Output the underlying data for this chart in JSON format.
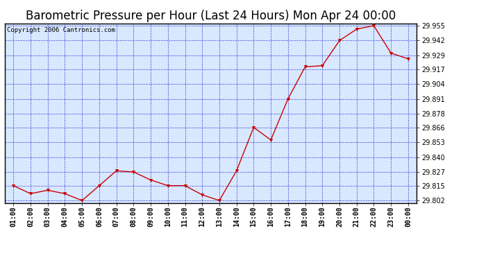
{
  "title": "Barometric Pressure per Hour (Last 24 Hours) Mon Apr 24 00:00",
  "copyright": "Copyright 2006 Cantronics.com",
  "x_labels": [
    "01:00",
    "02:00",
    "03:00",
    "04:00",
    "05:00",
    "06:00",
    "07:00",
    "08:00",
    "09:00",
    "10:00",
    "11:00",
    "12:00",
    "13:00",
    "14:00",
    "15:00",
    "16:00",
    "17:00",
    "18:00",
    "19:00",
    "20:00",
    "21:00",
    "22:00",
    "23:00",
    "00:00"
  ],
  "y_values": [
    29.815,
    29.808,
    29.811,
    29.808,
    29.802,
    29.815,
    29.828,
    29.827,
    29.82,
    29.815,
    29.815,
    29.807,
    29.802,
    29.828,
    29.866,
    29.855,
    29.891,
    29.919,
    29.92,
    29.942,
    29.952,
    29.955,
    29.931,
    29.926
  ],
  "line_color": "#cc0000",
  "marker_color": "#cc0000",
  "bg_color": "#d8e8ff",
  "outer_bg_color": "#ffffff",
  "grid_color": "#0000cc",
  "ylim_min": 29.8,
  "ylim_max": 29.957,
  "yticks": [
    29.802,
    29.815,
    29.827,
    29.84,
    29.853,
    29.866,
    29.878,
    29.891,
    29.904,
    29.917,
    29.929,
    29.942,
    29.955
  ],
  "title_fontsize": 12,
  "copyright_fontsize": 6.5,
  "tick_fontsize": 7,
  "marker_size": 3
}
